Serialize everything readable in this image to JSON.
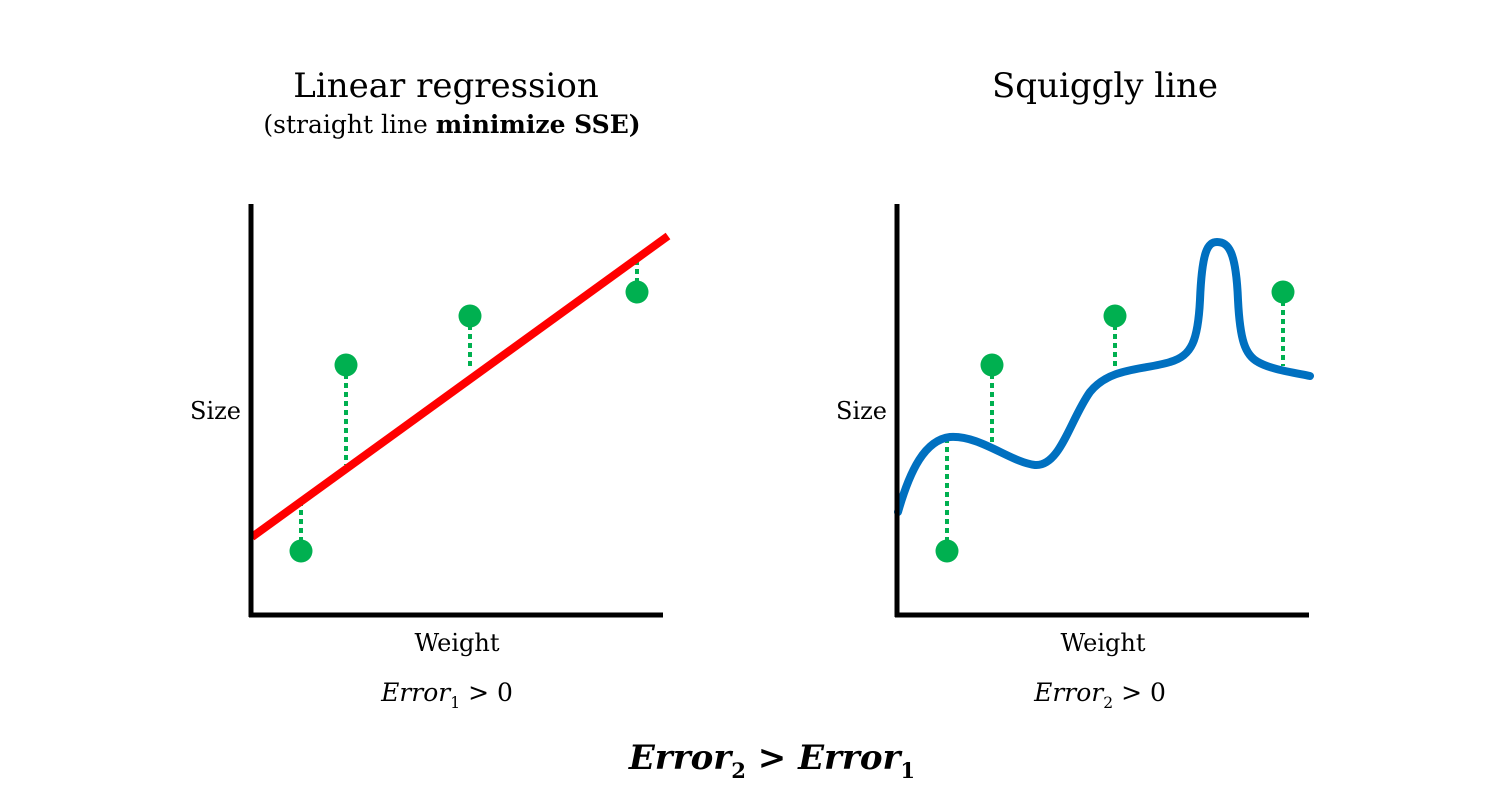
{
  "panels": [
    {
      "id": "linear",
      "title": "Linear regression",
      "subtitle_plain": "(straight line ",
      "subtitle_bold": "minimize SSE)",
      "ylabel": "Size",
      "xlabel": "Weight",
      "error": {
        "var": "Error",
        "sub": "1",
        "rel": " > 0"
      },
      "fit_color": "#ff0000",
      "point_color": "#00b050",
      "residual_color": "#00b050"
    },
    {
      "id": "squiggly",
      "title": "Squiggly line",
      "ylabel": "Size",
      "xlabel": "Weight",
      "error": {
        "var": "Error",
        "sub": "2",
        "rel": " > 0"
      },
      "fit_color": "#0070c0",
      "point_color": "#00b050",
      "residual_color": "#00b050"
    }
  ],
  "comparison": {
    "left_var": "Error",
    "left_sub": "2",
    "op": " > ",
    "right_var": "Error",
    "right_sub": "1"
  }
}
